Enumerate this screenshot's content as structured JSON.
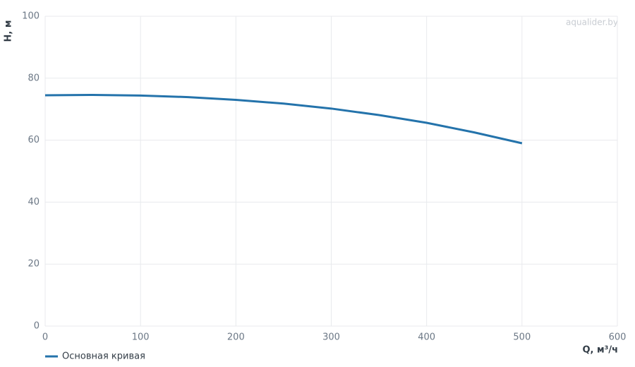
{
  "chart_data": {
    "type": "line",
    "xlabel": "Q, м³/ч",
    "ylabel": "H, м",
    "watermark": "aqualider.by",
    "x": [
      0,
      50,
      100,
      150,
      200,
      250,
      300,
      350,
      400,
      450,
      500
    ],
    "series": [
      {
        "name": "Основная кривая",
        "color": "#2473ab",
        "values": [
          74.5,
          74.6,
          74.4,
          73.9,
          73.0,
          71.8,
          70.2,
          68.1,
          65.6,
          62.5,
          59.0
        ]
      }
    ],
    "xlim": [
      0,
      600
    ],
    "xticks": [
      0,
      100,
      200,
      300,
      400,
      500,
      600
    ],
    "ylim": [
      0,
      100
    ],
    "yticks": [
      0,
      20,
      40,
      60,
      80,
      100
    ],
    "grid": true
  }
}
